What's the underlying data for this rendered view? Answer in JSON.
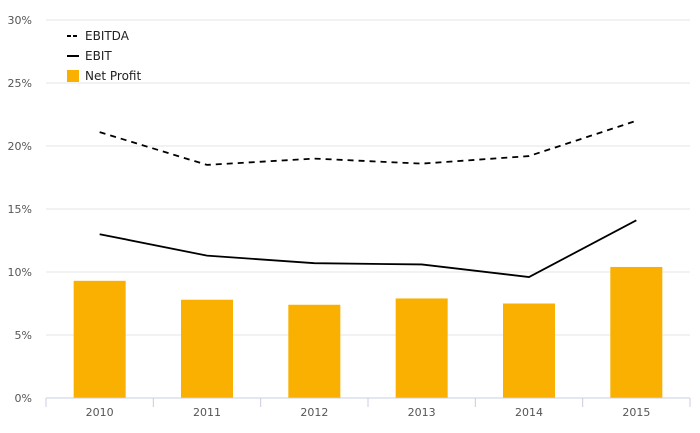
{
  "chart_data": {
    "type": "bar",
    "categories": [
      "2010",
      "2011",
      "2012",
      "2013",
      "2014",
      "2015"
    ],
    "series": [
      {
        "name": "EBITDA",
        "kind": "line",
        "style": "dashed",
        "color": "#000000",
        "values": [
          21.1,
          18.5,
          19.0,
          18.6,
          19.2,
          22.0
        ]
      },
      {
        "name": "EBIT",
        "kind": "line",
        "style": "solid",
        "color": "#000000",
        "values": [
          13.0,
          11.3,
          10.7,
          10.6,
          9.6,
          14.1
        ]
      },
      {
        "name": "Net Profit",
        "kind": "bar",
        "color": "#F9B000",
        "values": [
          9.3,
          7.8,
          7.4,
          7.9,
          7.5,
          10.4
        ]
      }
    ],
    "ylim": [
      0,
      30
    ],
    "y_ticks": [
      "0%",
      "5%",
      "10%",
      "15%",
      "20%",
      "25%",
      "30%"
    ],
    "y_tick_values": [
      0,
      5,
      10,
      15,
      20,
      25,
      30
    ],
    "grid": true,
    "legend_position": "top-left",
    "title": "",
    "xlabel": "",
    "ylabel": ""
  }
}
